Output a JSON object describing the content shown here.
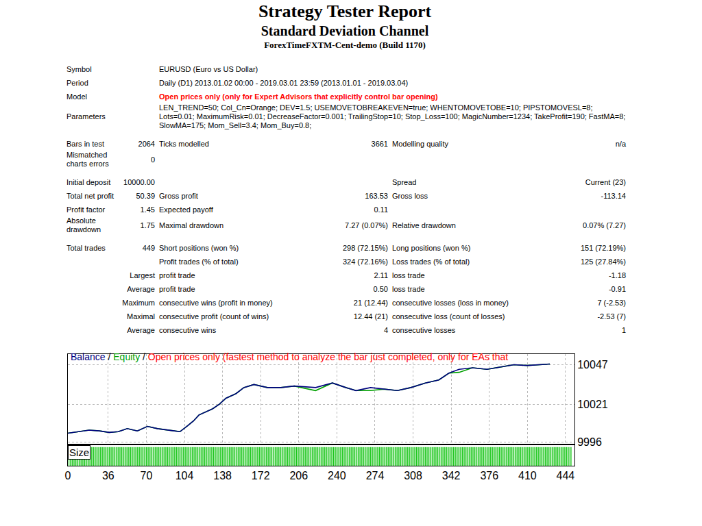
{
  "header": {
    "title": "Strategy Tester Report",
    "subtitle": "Standard Deviation Channel",
    "server": "ForexTimeFXTM-Cent-demo (Build 1170)"
  },
  "sections": [
    [
      [
        "Symbol",
        "EURUSD (Euro vs US Dollar)"
      ],
      [
        "Period",
        "Daily (D1) 2013.01.02 00:00 - 2019.03.01 23:59 (2013.01.01 - 2019.03.04)"
      ],
      [
        "Model",
        "Open prices only (only for Expert Advisors that explicitly control bar opening)"
      ],
      [
        "Parameters",
        "LEN_TREND=50; Col_Cn=Orange; DEV=1.5; USEMOVETOBREAKEVEN=true; WHENTOMOVETOBE=10; PIPSTOMOVESL=8; Lots=0.01; MaximumRisk=0.01; DecreaseFactor=0.001; TrailingStop=10; Stop_Loss=100; MagicNumber=1234; TakeProfit=190; FastMA=8; SlowMA=175; Mom_Sell=3.4; Mom_Buy=0.8;"
      ]
    ],
    [
      [
        "Bars in test",
        "2064",
        "Ticks modelled",
        "3661",
        "Modelling quality",
        "n/a"
      ],
      [
        "Mismatched charts errors",
        "0",
        null,
        null,
        null,
        null
      ]
    ],
    [
      [
        "Initial deposit",
        "10000.00",
        null,
        null,
        "Spread",
        "Current (23)"
      ],
      [
        "Total net profit",
        "50.39",
        "Gross profit",
        "163.53",
        "Gross loss",
        "-113.14"
      ],
      [
        "Profit factor",
        "1.45",
        "Expected payoff",
        "0.11",
        null,
        null
      ],
      [
        "Absolute drawdown",
        "1.75",
        "Maximal drawdown",
        "7.27 (0.07%)",
        "Relative drawdown",
        "0.07% (7.27)"
      ]
    ],
    [
      [
        "Total trades",
        "449",
        "Short positions (won %)",
        "298 (72.15%)",
        "Long positions (won %)",
        "151 (72.19%)"
      ],
      [
        null,
        null,
        "Profit trades (% of total)",
        "324 (72.16%)",
        "Loss trades (% of total)",
        "125 (27.84%)"
      ],
      [
        "Largest",
        "profit trade",
        "2.11",
        "loss trade",
        "-1.18"
      ],
      [
        "Average",
        "profit trade",
        "0.50",
        "loss trade",
        "-0.91"
      ],
      [
        "Maximum",
        "consecutive wins (profit in money)",
        "21 (12.44)",
        "consecutive losses (loss in money)",
        "7 (-2.53)"
      ],
      [
        "Maximal",
        "consecutive profit (count of wins)",
        "12.44 (21)",
        "consecutive loss (count of losses)",
        "-2.53 (7)"
      ],
      [
        "Average",
        "consecutive wins",
        "4",
        "consecutive losses",
        "1"
      ]
    ]
  ],
  "chart_header": {
    "separator": "/"
  },
  "chart_data": [
    {
      "type": "line",
      "subtitle": "Open prices only (fastest method to analyze the bar just completed, only for EAs that",
      "xlim": [
        0,
        452
      ],
      "xticks": [
        0,
        36,
        70,
        104,
        138,
        172,
        206,
        240,
        274,
        308,
        342,
        376,
        410,
        444
      ],
      "ylim": [
        9995,
        10054
      ],
      "yticks": [
        9996,
        10021,
        10047
      ],
      "grid": true,
      "tick_labels": "y",
      "series": [
        {
          "name": "Balance",
          "color": "#000080",
          "x": [
            0,
            10,
            19,
            28,
            37,
            45,
            53,
            62,
            71,
            80,
            86,
            92,
            100,
            107,
            112,
            117,
            123,
            129,
            135,
            141,
            150,
            157,
            166,
            178,
            190,
            202,
            221,
            236,
            248,
            257,
            270,
            282,
            294,
            306,
            319,
            331,
            340,
            349,
            361,
            374,
            386,
            398,
            410,
            423,
            430
          ],
          "values": [
            10002,
            10003,
            10004,
            10003.5,
            10002.5,
            10003,
            10005,
            10003.5,
            10006.5,
            10005,
            10004.5,
            10004,
            10003,
            10007,
            10010,
            10014,
            10016,
            10018,
            10021,
            10025,
            10028,
            10032,
            10034,
            10032,
            10032,
            10033,
            10032,
            10035,
            10032,
            10030,
            10032,
            10031,
            10030,
            10032,
            10035,
            10037,
            10041.5,
            10044,
            10045,
            10044,
            10045.5,
            10047,
            10046.5,
            10047,
            10047.5
          ]
        },
        {
          "name": "Equity",
          "color": "#00a000",
          "x": [
            0,
            10,
            19,
            28,
            37,
            45,
            53,
            62,
            71,
            80,
            86,
            92,
            100,
            107,
            112,
            117,
            123,
            129,
            135,
            141,
            150,
            157,
            166,
            178,
            190,
            202,
            221,
            236,
            248,
            257,
            270,
            282,
            294,
            306,
            319,
            331,
            340,
            349,
            361,
            374,
            386,
            398,
            410,
            423,
            430
          ],
          "values": [
            10002,
            10003,
            10004,
            10003.5,
            10002.5,
            10003,
            10005,
            10003.5,
            10006.5,
            10005,
            10004.5,
            10004,
            10003,
            10007,
            10010,
            10014,
            10016,
            10018,
            10021,
            10025,
            10028,
            10032,
            10034,
            10032,
            10032,
            10033,
            10030,
            10035,
            10032,
            10030,
            10030,
            10031,
            10030,
            10032,
            10035,
            10037,
            10041.5,
            10042,
            10045,
            10044,
            10045.5,
            10047,
            10046.5,
            10047,
            10047.5
          ]
        }
      ]
    },
    {
      "type": "bar",
      "title": "Size",
      "color": "#00c000",
      "xlim": [
        0,
        452
      ],
      "xticks": [
        0,
        36,
        70,
        104,
        138,
        172,
        206,
        240,
        274,
        308,
        342,
        376,
        410,
        444
      ],
      "ylim": [
        0,
        0.011
      ],
      "grid": false,
      "tick_labels": "x",
      "x": [
        1,
        2,
        3,
        4,
        5,
        6,
        7,
        8,
        9,
        10,
        11,
        12,
        13,
        14,
        15,
        16,
        17,
        18,
        19,
        20,
        21,
        22,
        23,
        24,
        25,
        26,
        27,
        28,
        29,
        30,
        31,
        32,
        33,
        34,
        35,
        36,
        37,
        38,
        39,
        40,
        41,
        42,
        43,
        44,
        45,
        46,
        47,
        48,
        49,
        50,
        51,
        52,
        53,
        54,
        55,
        56,
        57,
        58,
        59,
        60,
        61,
        62,
        63,
        64,
        65,
        66,
        67,
        68,
        69,
        70,
        71,
        72,
        73,
        74,
        75,
        76,
        77,
        78,
        79,
        80,
        81,
        82,
        83,
        84,
        85,
        86,
        87,
        88,
        89,
        90,
        91,
        92,
        93,
        94,
        95,
        96,
        97,
        98,
        99,
        100,
        101,
        102,
        103,
        104,
        105,
        106,
        107,
        108,
        109,
        110,
        111,
        112,
        113,
        114,
        115,
        116,
        117,
        118,
        119,
        120,
        121,
        122,
        123,
        124,
        125,
        126,
        127,
        128,
        129,
        130,
        131,
        132,
        133,
        134,
        135,
        136,
        137,
        138,
        139,
        140,
        141,
        142,
        143,
        144,
        145,
        146,
        147,
        148,
        149,
        150,
        151,
        152,
        153,
        154,
        155,
        156,
        157,
        158,
        159,
        160,
        161,
        162,
        163,
        164,
        165,
        166,
        167,
        168,
        169,
        170,
        171,
        172,
        173,
        174,
        175,
        176,
        177,
        178,
        179,
        180,
        181,
        182,
        183,
        184,
        185,
        186,
        187,
        188,
        189,
        190,
        191,
        192,
        193,
        194,
        195,
        196,
        197,
        198,
        199,
        200,
        201,
        202,
        203,
        204,
        205,
        206,
        207,
        208,
        209,
        210,
        211,
        212,
        213,
        214,
        215,
        216,
        217,
        218,
        219,
        220,
        221,
        222,
        223,
        224,
        225,
        226,
        227,
        228,
        229,
        230,
        231,
        232,
        233,
        234,
        235,
        236,
        237,
        238,
        239,
        240,
        241,
        242,
        243,
        244,
        245,
        246,
        247,
        248,
        249,
        250,
        251,
        252,
        253,
        254,
        255,
        256,
        257,
        258,
        259,
        260,
        261,
        262,
        263,
        264,
        265,
        266,
        267,
        268,
        269,
        270,
        271,
        272,
        273,
        274,
        275,
        276,
        277,
        278,
        279,
        280,
        281,
        282,
        283,
        284,
        285,
        286,
        287,
        288,
        289,
        290,
        291,
        292,
        293,
        294,
        295,
        296,
        297,
        298,
        299,
        300,
        301,
        302,
        303,
        304,
        305,
        306,
        307,
        308,
        309,
        310,
        311,
        312,
        313,
        314,
        315,
        316,
        317,
        318,
        319,
        320,
        321,
        322,
        323,
        324,
        325,
        326,
        327,
        328,
        329,
        330,
        331,
        332,
        333,
        334,
        335,
        336,
        337,
        338,
        339,
        340,
        341,
        342,
        343,
        344,
        345,
        346,
        347,
        348,
        349,
        350,
        351,
        352,
        353,
        354,
        355,
        356,
        357,
        358,
        359,
        360,
        361,
        362,
        363,
        364,
        365,
        366,
        367,
        368,
        369,
        370,
        371,
        372,
        373,
        374,
        375,
        376,
        377,
        378,
        379,
        380,
        381,
        382,
        383,
        384,
        385,
        386,
        387,
        388,
        389,
        390,
        391,
        392,
        393,
        394,
        395,
        396,
        397,
        398,
        399,
        400,
        401,
        402,
        403,
        404,
        405,
        406,
        407,
        408,
        409,
        410,
        411,
        412,
        413,
        414,
        415,
        416,
        417,
        418,
        419,
        420,
        421,
        422,
        423,
        424,
        425,
        426,
        427,
        428,
        429,
        430,
        431,
        432,
        433,
        434,
        435,
        436,
        437,
        438,
        439,
        440,
        441,
        442,
        443,
        444,
        445,
        446,
        447,
        448,
        449
      ],
      "values": [
        0.01,
        0.01,
        0.01,
        0.01,
        0.01,
        0.01,
        0.01,
        0.01,
        0.01,
        0.01,
        0.01,
        0.01,
        0.01,
        0.01,
        0.01,
        0.01,
        0.01,
        0.01,
        0.01,
        0.01,
        0.01,
        0.01,
        0.01,
        0.01,
        0.01,
        0.01,
        0.01,
        0.01,
        0.01,
        0.01,
        0.01,
        0.01,
        0.01,
        0.01,
        0.01,
        0.01,
        0.01,
        0.01,
        0.01,
        0.01,
        0.01,
        0.01,
        0.01,
        0.01,
        0.01,
        0.01,
        0.01,
        0.01,
        0.01,
        0.01,
        0.01,
        0.01,
        0.01,
        0.01,
        0.01,
        0.01,
        0.01,
        0.01,
        0.01,
        0.01,
        0.01,
        0.01,
        0.01,
        0.01,
        0.01,
        0.01,
        0.01,
        0.01,
        0.01,
        0.01,
        0.01,
        0.01,
        0.01,
        0.01,
        0.01,
        0.01,
        0.01,
        0.01,
        0.01,
        0.01,
        0.01,
        0.01,
        0.01,
        0.01,
        0.01,
        0.01,
        0.01,
        0.01,
        0.01,
        0.01,
        0.01,
        0.01,
        0.01,
        0.01,
        0.01,
        0.01,
        0.01,
        0.01,
        0.01,
        0.01,
        0.01,
        0.01,
        0.01,
        0.01,
        0.01,
        0.01,
        0.01,
        0.01,
        0.01,
        0.01,
        0.01,
        0.01,
        0.01,
        0.01,
        0.01,
        0.01,
        0.01,
        0.01,
        0.01,
        0.01,
        0.01,
        0.01,
        0.01,
        0.01,
        0.01,
        0.01,
        0.01,
        0.01,
        0.01,
        0.01,
        0.01,
        0.01,
        0.01,
        0.01,
        0.01,
        0.01,
        0.01,
        0.01,
        0.01,
        0.01,
        0.01,
        0.01,
        0.01,
        0.01,
        0.01,
        0.01,
        0.01,
        0.01,
        0.01,
        0.01,
        0.01,
        0.01,
        0.01,
        0.01,
        0.01,
        0.01,
        0.01,
        0.01,
        0.01,
        0.01,
        0.01,
        0.01,
        0.01,
        0.01,
        0.01,
        0.01,
        0.01,
        0.01,
        0.01,
        0.01,
        0.01,
        0.01,
        0.01,
        0.01,
        0.01,
        0.01,
        0.01,
        0.01,
        0.01,
        0.01,
        0.01,
        0.01,
        0.01,
        0.01,
        0.01,
        0.01,
        0.01,
        0.01,
        0.01,
        0.01,
        0.01,
        0.01,
        0.01,
        0.01,
        0.01,
        0.01,
        0.01,
        0.01,
        0.01,
        0.01,
        0.01,
        0.01,
        0.01,
        0.01,
        0.01,
        0.01,
        0.01,
        0.01,
        0.01,
        0.01,
        0.01,
        0.01,
        0.01,
        0.01,
        0.01,
        0.01,
        0.01,
        0.01,
        0.01,
        0.01,
        0.01,
        0.01,
        0.01,
        0.01,
        0.01,
        0.01,
        0.01,
        0.01,
        0.01,
        0.01,
        0.01,
        0.01,
        0.01,
        0.01,
        0.01,
        0.01,
        0.01,
        0.01,
        0.01,
        0.01,
        0.01,
        0.01,
        0.01,
        0.01,
        0.01,
        0.01,
        0.01,
        0.01,
        0.01,
        0.01,
        0.01,
        0.01,
        0.01,
        0.01,
        0.01,
        0.01,
        0.01,
        0.01,
        0.01,
        0.01,
        0.01,
        0.01,
        0.01,
        0.01,
        0.01,
        0.01,
        0.01,
        0.01,
        0.01,
        0.01,
        0.01,
        0.01,
        0.01,
        0.01,
        0.01,
        0.01,
        0.01,
        0.01,
        0.01,
        0.01,
        0.01,
        0.01,
        0.01,
        0.01,
        0.01,
        0.01,
        0.01,
        0.01,
        0.01,
        0.01,
        0.01,
        0.01,
        0.01,
        0.01,
        0.01,
        0.01,
        0.01,
        0.01,
        0.01,
        0.01,
        0.01,
        0.01,
        0.01,
        0.01,
        0.01,
        0.01,
        0.01,
        0.01,
        0.01,
        0.01,
        0.01,
        0.01,
        0.01,
        0.01,
        0.01,
        0.01,
        0.01,
        0.01,
        0.01,
        0.01,
        0.01,
        0.01,
        0.01,
        0.01,
        0.01,
        0.01,
        0.01,
        0.01,
        0.01,
        0.01,
        0.01,
        0.01,
        0.01,
        0.01,
        0.01,
        0.01,
        0.01,
        0.01,
        0.01,
        0.01,
        0.01,
        0.01,
        0.01,
        0.01,
        0.01,
        0.01,
        0.01,
        0.01,
        0.01,
        0.01,
        0.01,
        0.01,
        0.01,
        0.01,
        0.01,
        0.01,
        0.01,
        0.01,
        0.01,
        0.01,
        0.01,
        0.01,
        0.01,
        0.01,
        0.01,
        0.01,
        0.01,
        0.01,
        0.01,
        0.01,
        0.01,
        0.01,
        0.01,
        0.01,
        0.01,
        0.01,
        0.01,
        0.01,
        0.01,
        0.01,
        0.01,
        0.01,
        0.01,
        0.01,
        0.01,
        0.01,
        0.01,
        0.01,
        0.01,
        0.01,
        0.01,
        0.01,
        0.01,
        0.01,
        0.01,
        0.01,
        0.01,
        0.01,
        0.01,
        0.01,
        0.01,
        0.01,
        0.01,
        0.01,
        0.01,
        0.01,
        0.01,
        0.01,
        0.01,
        0.01,
        0.01,
        0.01,
        0.01,
        0.01,
        0.01,
        0.01,
        0.01,
        0.01,
        0.01,
        0.01,
        0.01,
        0.01,
        0.01,
        0.01,
        0.01,
        0.01,
        0.01,
        0.01,
        0.01,
        0.01,
        0.01,
        0.01,
        0.01,
        0.01,
        0.01,
        0.01,
        0.01,
        0.01,
        0.01,
        0.01,
        0.01,
        0.01,
        0.01,
        0.01,
        0.01,
        0.01,
        0.01,
        0.01,
        0.01
      ]
    }
  ]
}
